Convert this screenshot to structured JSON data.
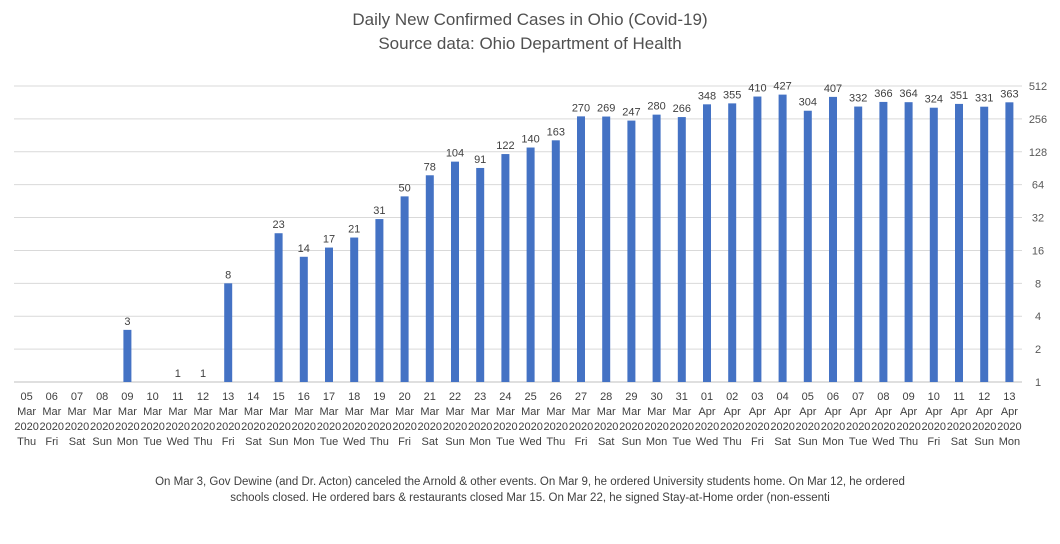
{
  "chart_data": {
    "type": "bar",
    "title": "Daily New Confirmed Cases in Ohio (Covid-19)",
    "subtitle": "Source data: Ohio Department of Health",
    "yscale": "log2",
    "ylim": [
      1,
      512
    ],
    "y_ticks": [
      "1",
      "2",
      "4",
      "8",
      "16",
      "32",
      "64",
      "128",
      "256",
      "512"
    ],
    "y_axis_side": "right",
    "bar_color": "#4472c4",
    "categories": [
      {
        "day": "05",
        "month": "Mar",
        "year": "2020",
        "weekday": "Thu"
      },
      {
        "day": "06",
        "month": "Mar",
        "year": "2020",
        "weekday": "Fri"
      },
      {
        "day": "07",
        "month": "Mar",
        "year": "2020",
        "weekday": "Sat"
      },
      {
        "day": "08",
        "month": "Mar",
        "year": "2020",
        "weekday": "Sun"
      },
      {
        "day": "09",
        "month": "Mar",
        "year": "2020",
        "weekday": "Mon"
      },
      {
        "day": "10",
        "month": "Mar",
        "year": "2020",
        "weekday": "Tue"
      },
      {
        "day": "11",
        "month": "Mar",
        "year": "2020",
        "weekday": "Wed"
      },
      {
        "day": "12",
        "month": "Mar",
        "year": "2020",
        "weekday": "Thu"
      },
      {
        "day": "13",
        "month": "Mar",
        "year": "2020",
        "weekday": "Fri"
      },
      {
        "day": "14",
        "month": "Mar",
        "year": "2020",
        "weekday": "Sat"
      },
      {
        "day": "15",
        "month": "Mar",
        "year": "2020",
        "weekday": "Sun"
      },
      {
        "day": "16",
        "month": "Mar",
        "year": "2020",
        "weekday": "Mon"
      },
      {
        "day": "17",
        "month": "Mar",
        "year": "2020",
        "weekday": "Tue"
      },
      {
        "day": "18",
        "month": "Mar",
        "year": "2020",
        "weekday": "Wed"
      },
      {
        "day": "19",
        "month": "Mar",
        "year": "2020",
        "weekday": "Thu"
      },
      {
        "day": "20",
        "month": "Mar",
        "year": "2020",
        "weekday": "Fri"
      },
      {
        "day": "21",
        "month": "Mar",
        "year": "2020",
        "weekday": "Sat"
      },
      {
        "day": "22",
        "month": "Mar",
        "year": "2020",
        "weekday": "Sun"
      },
      {
        "day": "23",
        "month": "Mar",
        "year": "2020",
        "weekday": "Mon"
      },
      {
        "day": "24",
        "month": "Mar",
        "year": "2020",
        "weekday": "Tue"
      },
      {
        "day": "25",
        "month": "Mar",
        "year": "2020",
        "weekday": "Wed"
      },
      {
        "day": "26",
        "month": "Mar",
        "year": "2020",
        "weekday": "Thu"
      },
      {
        "day": "27",
        "month": "Mar",
        "year": "2020",
        "weekday": "Fri"
      },
      {
        "day": "28",
        "month": "Mar",
        "year": "2020",
        "weekday": "Sat"
      },
      {
        "day": "29",
        "month": "Mar",
        "year": "2020",
        "weekday": "Sun"
      },
      {
        "day": "30",
        "month": "Mar",
        "year": "2020",
        "weekday": "Mon"
      },
      {
        "day": "31",
        "month": "Mar",
        "year": "2020",
        "weekday": "Tue"
      },
      {
        "day": "01",
        "month": "Apr",
        "year": "2020",
        "weekday": "Wed"
      },
      {
        "day": "02",
        "month": "Apr",
        "year": "2020",
        "weekday": "Thu"
      },
      {
        "day": "03",
        "month": "Apr",
        "year": "2020",
        "weekday": "Fri"
      },
      {
        "day": "04",
        "month": "Apr",
        "year": "2020",
        "weekday": "Sat"
      },
      {
        "day": "05",
        "month": "Apr",
        "year": "2020",
        "weekday": "Sun"
      },
      {
        "day": "06",
        "month": "Apr",
        "year": "2020",
        "weekday": "Mon"
      },
      {
        "day": "07",
        "month": "Apr",
        "year": "2020",
        "weekday": "Tue"
      },
      {
        "day": "08",
        "month": "Apr",
        "year": "2020",
        "weekday": "Wed"
      },
      {
        "day": "09",
        "month": "Apr",
        "year": "2020",
        "weekday": "Thu"
      },
      {
        "day": "10",
        "month": "Apr",
        "year": "2020",
        "weekday": "Fri"
      },
      {
        "day": "11",
        "month": "Apr",
        "year": "2020",
        "weekday": "Sat"
      },
      {
        "day": "12",
        "month": "Apr",
        "year": "2020",
        "weekday": "Sun"
      },
      {
        "day": "13",
        "month": "Apr",
        "year": "2020",
        "weekday": "Mon"
      }
    ],
    "values": [
      null,
      null,
      null,
      null,
      3,
      null,
      1,
      1,
      8,
      null,
      23,
      14,
      17,
      21,
      31,
      50,
      78,
      104,
      91,
      122,
      140,
      163,
      270,
      269,
      247,
      280,
      266,
      348,
      355,
      410,
      427,
      304,
      407,
      332,
      366,
      364,
      324,
      351,
      331,
      363
    ]
  },
  "footnote": {
    "line1": "On Mar 3, Gov Dewine (and Dr. Acton) canceled the Arnold & other events. On Mar 9, he ordered University students home.  On Mar 12, he ordered",
    "line2": "schools closed. He ordered bars & restaurants closed Mar 15. On Mar 22, he signed Stay-at-Home order (non-essenti"
  }
}
